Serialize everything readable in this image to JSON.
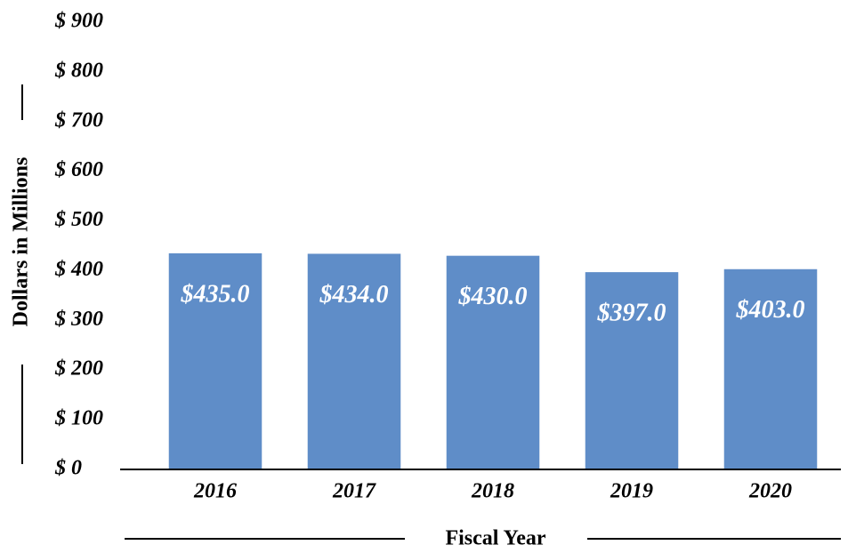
{
  "chart_data": {
    "type": "bar",
    "x_label": "Fiscal Year",
    "y_label": "Dollars in Millions",
    "categories": [
      "2016",
      "2017",
      "2018",
      "2019",
      "2020"
    ],
    "values": [
      435,
      434,
      430,
      397,
      403
    ],
    "value_labels": [
      "$435.0",
      "$434.0",
      "$430.0",
      "$397.0",
      "$403.0"
    ],
    "color": "#5f8dc8",
    "ylim": [
      0,
      900
    ],
    "yticks": [
      {
        "value": 0,
        "label": "$ 0"
      },
      {
        "value": 100,
        "label": "$ 100"
      },
      {
        "value": 200,
        "label": "$ 200"
      },
      {
        "value": 300,
        "label": "$ 300"
      },
      {
        "value": 400,
        "label": "$ 400"
      },
      {
        "value": 500,
        "label": "$ 500"
      },
      {
        "value": 600,
        "label": "$ 600"
      },
      {
        "value": 700,
        "label": "$ 700"
      },
      {
        "value": 800,
        "label": "$ 800"
      },
      {
        "value": 900,
        "label": "$ 900"
      }
    ],
    "grid": false
  }
}
